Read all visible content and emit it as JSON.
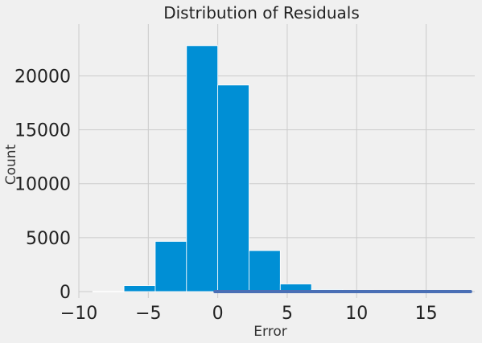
{
  "chart_data": {
    "type": "bar",
    "title": "Distribution of Residuals",
    "xlabel": "Error",
    "ylabel": "Count",
    "xlim": [
      -10,
      18.5
    ],
    "ylim": [
      -600,
      24800
    ],
    "grid": true,
    "x_ticks": [
      -10,
      -5,
      0,
      5,
      10,
      15
    ],
    "y_ticks": [
      0,
      5000,
      10000,
      15000,
      20000
    ],
    "bins": [
      {
        "x0": -9.0,
        "x1": -6.75,
        "count": 20
      },
      {
        "x0": -6.75,
        "x1": -4.5,
        "count": 550
      },
      {
        "x0": -4.5,
        "x1": -2.25,
        "count": 4650
      },
      {
        "x0": -2.25,
        "x1": 0.0,
        "count": 22800
      },
      {
        "x0": 0.0,
        "x1": 2.25,
        "count": 19150
      },
      {
        "x0": 2.25,
        "x1": 4.5,
        "count": 3800
      },
      {
        "x0": 4.5,
        "x1": 6.75,
        "count": 700
      },
      {
        "x0": 6.75,
        "x1": 9.0,
        "count": 180
      },
      {
        "x0": 9.0,
        "x1": 11.25,
        "count": 120
      },
      {
        "x0": 11.25,
        "x1": 13.5,
        "count": 90
      },
      {
        "x0": 13.5,
        "x1": 15.75,
        "count": 60
      },
      {
        "x0": 15.75,
        "x1": 18.0,
        "count": 40
      }
    ],
    "line": {
      "x": [
        -0.2,
        2,
        4,
        6,
        8,
        10,
        12,
        14,
        16,
        18.2
      ],
      "y": [
        0,
        0,
        0,
        0,
        0,
        0,
        0,
        0,
        0,
        0
      ]
    }
  }
}
